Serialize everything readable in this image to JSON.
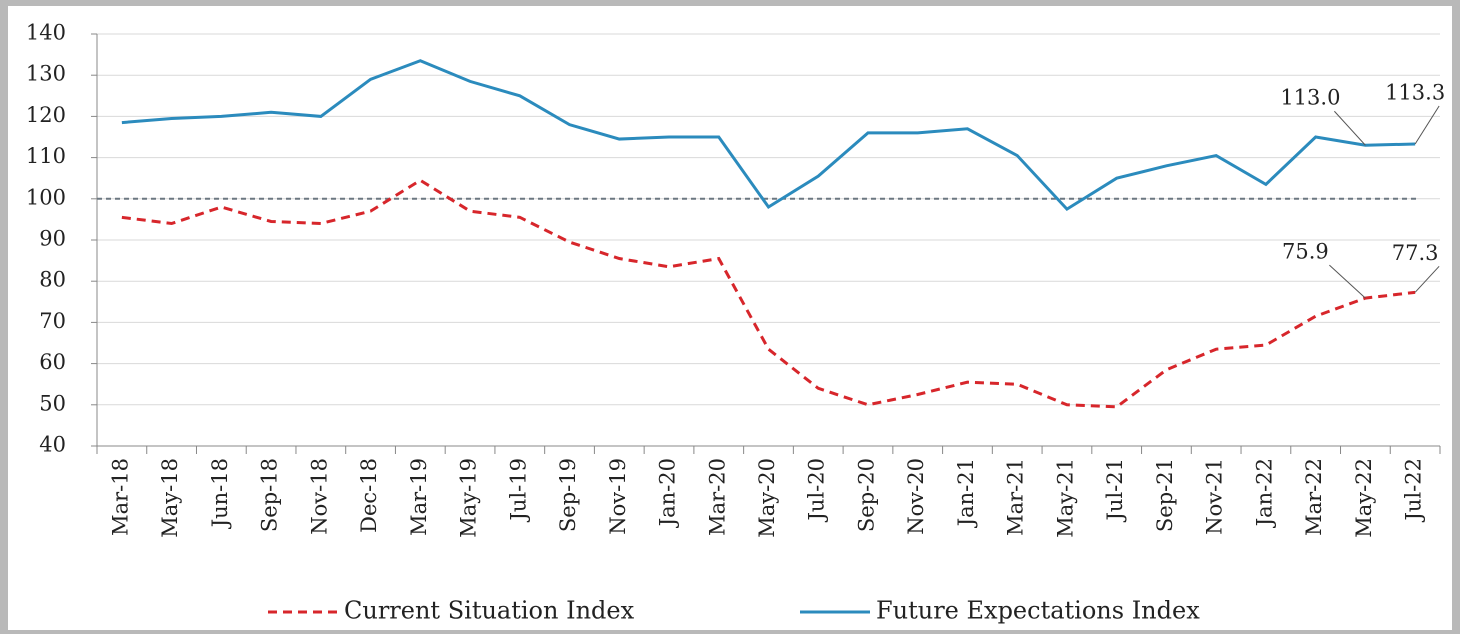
{
  "chart_data": {
    "type": "line",
    "categories": [
      "Mar-18",
      "May-18",
      "Jun-18",
      "Sep-18",
      "Nov-18",
      "Dec-18",
      "Mar-19",
      "May-19",
      "Jul-19",
      "Sep-19",
      "Nov-19",
      "Jan-20",
      "Mar-20",
      "May-20",
      "Jul-20",
      "Sep-20",
      "Nov-20",
      "Jan-21",
      "Mar-21",
      "May-21",
      "Jul-21",
      "Sep-21",
      "Nov-21",
      "Jan-22",
      "Mar-22",
      "May-22",
      "Jul-22"
    ],
    "series": [
      {
        "name": "Current Situation Index",
        "color": "#d7262b",
        "dashed": true,
        "values": [
          95.5,
          94,
          98,
          94.5,
          94,
          97,
          104.5,
          97,
          95.5,
          89.5,
          85.5,
          83.5,
          85.5,
          63.5,
          54,
          50,
          52.5,
          55.5,
          55,
          50,
          49.5,
          58.5,
          63.5,
          64.5,
          71.5,
          75.9,
          77.3
        ],
        "value_labels": [
          null,
          null,
          null,
          null,
          null,
          null,
          null,
          null,
          null,
          null,
          null,
          null,
          null,
          null,
          null,
          null,
          null,
          null,
          null,
          null,
          null,
          null,
          null,
          null,
          null,
          "75.9",
          "77.3"
        ]
      },
      {
        "name": "Future Expectations Index",
        "color": "#2b8bbd",
        "dashed": false,
        "values": [
          118.5,
          119.5,
          120,
          121,
          120,
          129,
          133.5,
          128.5,
          125,
          118,
          114.5,
          115,
          115,
          98,
          105.5,
          116,
          116,
          117,
          110.5,
          97.5,
          105,
          108,
          110.5,
          103.5,
          115,
          113.0,
          113.3
        ],
        "value_labels": [
          null,
          null,
          null,
          null,
          null,
          null,
          null,
          null,
          null,
          null,
          null,
          null,
          null,
          null,
          null,
          null,
          null,
          null,
          null,
          null,
          null,
          null,
          null,
          null,
          null,
          "113.0",
          "113.3"
        ]
      }
    ],
    "ylim": [
      40,
      140
    ],
    "yticks": [
      40,
      50,
      60,
      70,
      80,
      90,
      100,
      110,
      120,
      130,
      140
    ],
    "grid": true,
    "reference_line": 100,
    "legend": "bottom"
  }
}
